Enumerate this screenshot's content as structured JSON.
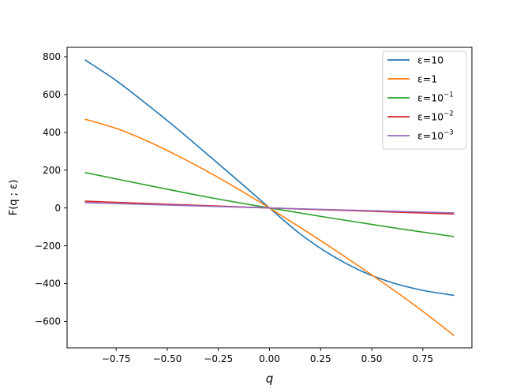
{
  "chart_data": {
    "type": "line",
    "title": "",
    "xlabel": "q",
    "ylabel": "F(q ; ε)",
    "xlim": [
      -0.99,
      0.99
    ],
    "ylim": [
      -740,
      850
    ],
    "xticks": [
      -0.75,
      -0.5,
      -0.25,
      0.0,
      0.25,
      0.5,
      0.75
    ],
    "xtick_labels": [
      "−0.75",
      "−0.50",
      "−0.25",
      "0.00",
      "0.25",
      "0.50",
      "0.75"
    ],
    "yticks": [
      -600,
      -400,
      -200,
      0,
      200,
      400,
      600,
      800
    ],
    "ytick_labels": [
      "−600",
      "−400",
      "−200",
      "0",
      "200",
      "400",
      "600",
      "800"
    ],
    "grid": false,
    "legend_position": "top-right",
    "series": [
      {
        "name": "ε=10",
        "legend": {
          "base": "ε=10",
          "sup": ""
        },
        "color": "#1f77b4",
        "x": [
          -0.9,
          -0.75,
          -0.6,
          -0.45,
          -0.3,
          -0.15,
          0.0,
          0.15,
          0.3,
          0.45,
          0.6,
          0.75,
          0.9
        ],
        "y": [
          782,
          674,
          549,
          418,
          280,
          141,
          0,
          -137,
          -248,
          -334,
          -395,
          -436,
          -462
        ]
      },
      {
        "name": "ε=1",
        "legend": {
          "base": "ε=1",
          "sup": ""
        },
        "color": "#ff7f0e",
        "x": [
          -0.9,
          -0.75,
          -0.6,
          -0.45,
          -0.3,
          -0.15,
          0.0,
          0.15,
          0.3,
          0.45,
          0.6,
          0.75,
          0.9
        ],
        "y": [
          469,
          421,
          355,
          277,
          191,
          98,
          0,
          -103,
          -208,
          -317,
          -429,
          -547,
          -673
        ]
      },
      {
        "name": "ε=10⁻¹",
        "legend": {
          "base": "ε=10",
          "sup": "−1"
        },
        "color": "#2ca02c",
        "x": [
          -0.9,
          -0.6,
          -0.3,
          0.0,
          0.3,
          0.6,
          0.9
        ],
        "y": [
          187,
          121,
          57,
          0,
          -53,
          -104,
          -151
        ]
      },
      {
        "name": "ε=10⁻²",
        "legend": {
          "base": "ε=10",
          "sup": "−2"
        },
        "color": "#d62728",
        "x": [
          -0.9,
          -0.45,
          0.0,
          0.45,
          0.9
        ],
        "y": [
          36,
          18,
          0,
          -16,
          -32
        ]
      },
      {
        "name": "ε=10⁻³",
        "legend": {
          "base": "ε=10",
          "sup": "−3"
        },
        "color": "#9467bd",
        "x": [
          -0.9,
          -0.45,
          0.0,
          0.45,
          0.9
        ],
        "y": [
          28,
          14,
          0,
          -13,
          -26
        ]
      }
    ]
  }
}
